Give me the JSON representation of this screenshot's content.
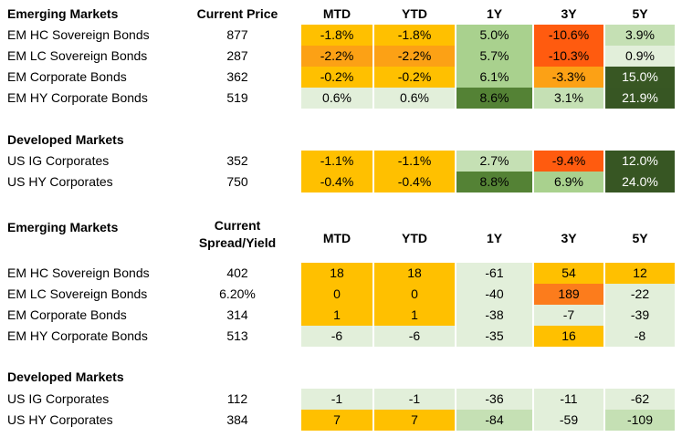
{
  "price_table": {
    "columns": [
      "MTD",
      "YTD",
      "1Y",
      "3Y",
      "5Y"
    ],
    "sections": [
      {
        "title": "Emerging Markets",
        "value_header": "Current Price",
        "rows": [
          {
            "name": "EM HC Sovereign Bonds",
            "value": "877",
            "cells": [
              {
                "text": "-1.8%",
                "color": "#ffc000"
              },
              {
                "text": "-1.8%",
                "color": "#ffc000"
              },
              {
                "text": "5.0%",
                "color": "#a9d18e"
              },
              {
                "text": "-10.6%",
                "color": "#ff5b0f"
              },
              {
                "text": "3.9%",
                "color": "#c5e0b4"
              }
            ]
          },
          {
            "name": "EM LC Sovereign Bonds",
            "value": "287",
            "cells": [
              {
                "text": "-2.2%",
                "color": "#fca115"
              },
              {
                "text": "-2.2%",
                "color": "#fca115"
              },
              {
                "text": "5.7%",
                "color": "#a9d18e"
              },
              {
                "text": "-10.3%",
                "color": "#ff5b0f"
              },
              {
                "text": "0.9%",
                "color": "#e2efda"
              }
            ]
          },
          {
            "name": "EM Corporate Bonds",
            "value": "362",
            "cells": [
              {
                "text": "-0.2%",
                "color": "#ffc000"
              },
              {
                "text": "-0.2%",
                "color": "#ffc000"
              },
              {
                "text": "6.1%",
                "color": "#a9d18e"
              },
              {
                "text": "-3.3%",
                "color": "#fca115"
              },
              {
                "text": "15.0%",
                "color": "#385723",
                "fg": "#ffffff"
              }
            ]
          },
          {
            "name": "EM HY Corporate Bonds",
            "value": "519",
            "cells": [
              {
                "text": "0.6%",
                "color": "#e2efda"
              },
              {
                "text": "0.6%",
                "color": "#e2efda"
              },
              {
                "text": "8.6%",
                "color": "#548235"
              },
              {
                "text": "3.1%",
                "color": "#c5e0b4"
              },
              {
                "text": "21.9%",
                "color": "#375623",
                "fg": "#ffffff"
              }
            ]
          }
        ]
      },
      {
        "title": "Developed Markets",
        "value_header": "",
        "rows": [
          {
            "name": "US IG Corporates",
            "value": "352",
            "cells": [
              {
                "text": "-1.1%",
                "color": "#ffc000"
              },
              {
                "text": "-1.1%",
                "color": "#ffc000"
              },
              {
                "text": "2.7%",
                "color": "#c5e0b4"
              },
              {
                "text": "-9.4%",
                "color": "#ff5b0f"
              },
              {
                "text": "12.0%",
                "color": "#375623",
                "fg": "#ffffff"
              }
            ]
          },
          {
            "name": "US HY Corporates",
            "value": "750",
            "cells": [
              {
                "text": "-0.4%",
                "color": "#ffc000"
              },
              {
                "text": "-0.4%",
                "color": "#ffc000"
              },
              {
                "text": "8.8%",
                "color": "#548235"
              },
              {
                "text": "6.9%",
                "color": "#a9d18e"
              },
              {
                "text": "24.0%",
                "color": "#375623",
                "fg": "#ffffff"
              }
            ]
          }
        ]
      }
    ]
  },
  "spread_table": {
    "columns": [
      "MTD",
      "YTD",
      "1Y",
      "3Y",
      "5Y"
    ],
    "value_header_line1": "Current",
    "value_header_line2": "Spread/Yield",
    "sections": [
      {
        "title": "Emerging Markets",
        "rows": [
          {
            "name": "EM HC Sovereign Bonds",
            "value": "402",
            "cells": [
              {
                "text": "18",
                "color": "#ffc000"
              },
              {
                "text": "18",
                "color": "#ffc000"
              },
              {
                "text": "-61",
                "color": "#e2efda"
              },
              {
                "text": "54",
                "color": "#ffc000"
              },
              {
                "text": "12",
                "color": "#ffc000"
              }
            ]
          },
          {
            "name": "EM LC Sovereign Bonds",
            "value": "6.20%",
            "cells": [
              {
                "text": "0",
                "color": "#ffc000"
              },
              {
                "text": "0",
                "color": "#ffc000"
              },
              {
                "text": "-40",
                "color": "#e2efda"
              },
              {
                "text": "189",
                "color": "#fc7c1c"
              },
              {
                "text": "-22",
                "color": "#e2efda"
              }
            ]
          },
          {
            "name": "EM Corporate Bonds",
            "value": "314",
            "cells": [
              {
                "text": "1",
                "color": "#ffc000"
              },
              {
                "text": "1",
                "color": "#ffc000"
              },
              {
                "text": "-38",
                "color": "#e2efda"
              },
              {
                "text": "-7",
                "color": "#e2efda"
              },
              {
                "text": "-39",
                "color": "#e2efda"
              }
            ]
          },
          {
            "name": "EM HY Corporate Bonds",
            "value": "513",
            "cells": [
              {
                "text": "-6",
                "color": "#e2efda"
              },
              {
                "text": "-6",
                "color": "#e2efda"
              },
              {
                "text": "-35",
                "color": "#e2efda"
              },
              {
                "text": "16",
                "color": "#ffc000"
              },
              {
                "text": "-8",
                "color": "#e2efda"
              }
            ]
          }
        ]
      },
      {
        "title": "Developed Markets",
        "rows": [
          {
            "name": "US IG Corporates",
            "value": "112",
            "cells": [
              {
                "text": "-1",
                "color": "#e2efda"
              },
              {
                "text": "-1",
                "color": "#e2efda"
              },
              {
                "text": "-36",
                "color": "#e2efda"
              },
              {
                "text": "-11",
                "color": "#e2efda"
              },
              {
                "text": "-62",
                "color": "#e2efda"
              }
            ]
          },
          {
            "name": "US HY Corporates",
            "value": "384",
            "cells": [
              {
                "text": "7",
                "color": "#ffc000"
              },
              {
                "text": "7",
                "color": "#ffc000"
              },
              {
                "text": "-84",
                "color": "#c5e0b4"
              },
              {
                "text": "-59",
                "color": "#e2efda"
              },
              {
                "text": "-109",
                "color": "#c5e0b4"
              }
            ]
          }
        ]
      }
    ]
  }
}
